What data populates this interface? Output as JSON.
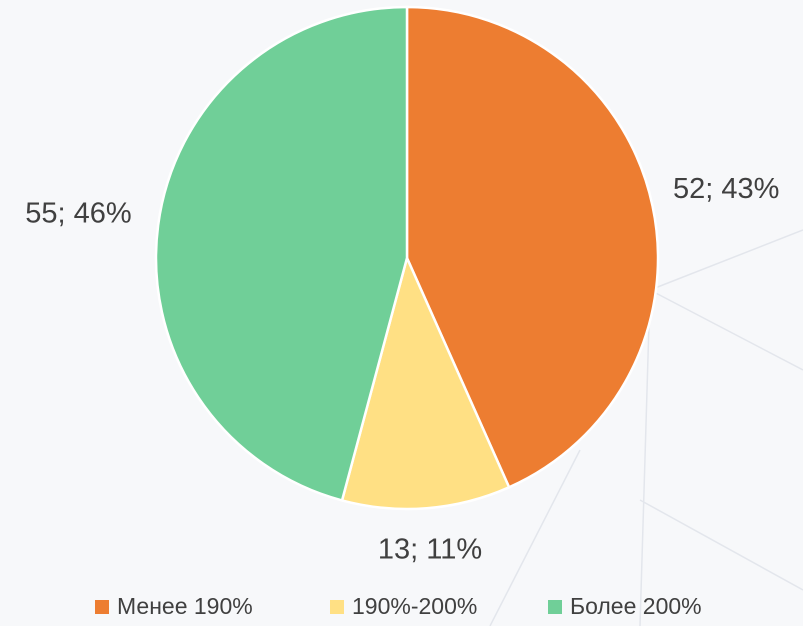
{
  "chart_data": {
    "type": "pie",
    "categories": [
      "Менее 190%",
      "190%-200%",
      "Более 200%"
    ],
    "values": [
      52,
      13,
      55
    ],
    "value_labels": [
      "52; 43%",
      "13; 11%",
      "55; 46%"
    ],
    "colors": [
      "#ed7d31",
      "#ffe084",
      "#70cf98"
    ],
    "legend": "bottom"
  }
}
